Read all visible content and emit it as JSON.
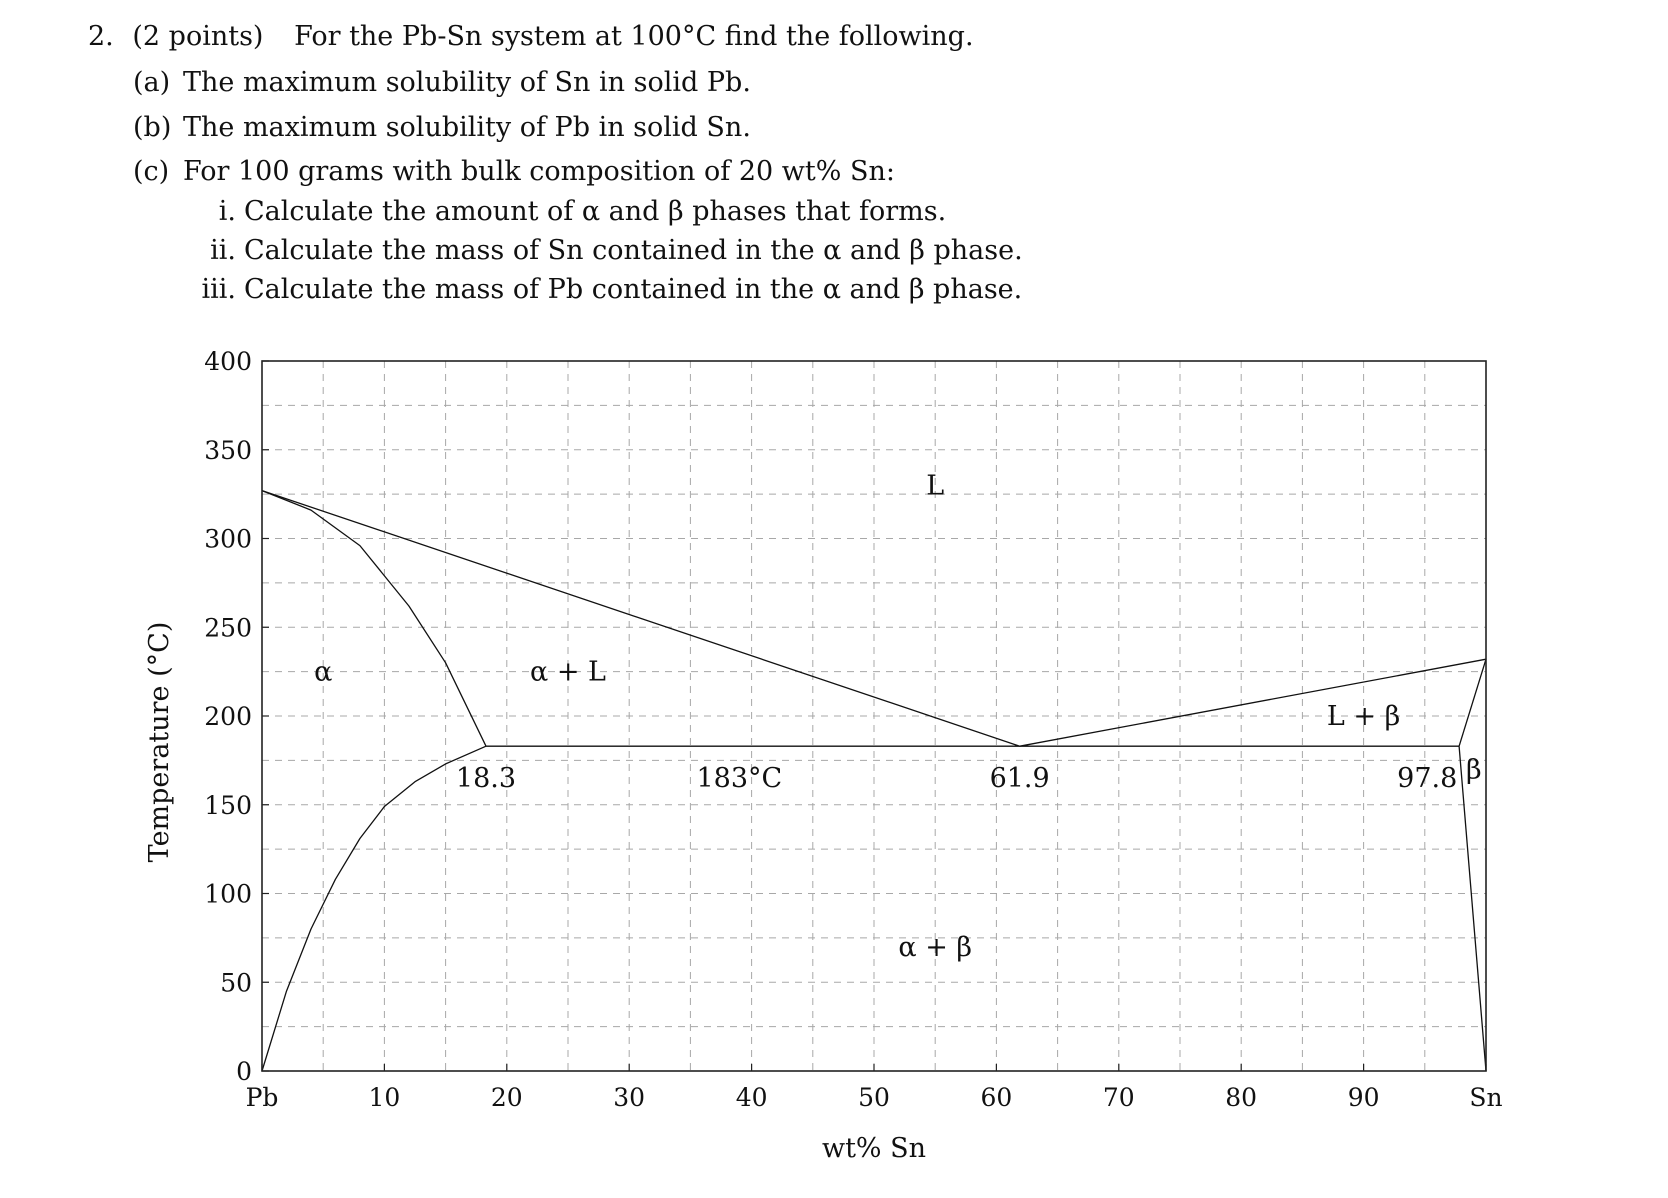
{
  "problem": {
    "number": "2.",
    "points": "(2 points)",
    "intro": "For the Pb-Sn system at 100°C find the following.",
    "parts": [
      {
        "label": "(a)",
        "text": "The maximum solubility of Sn in solid Pb."
      },
      {
        "label": "(b)",
        "text": "The maximum solubility of Pb in solid Sn."
      },
      {
        "label": "(c)",
        "text": "For 100 grams with bulk composition of 20 wt% Sn:"
      }
    ],
    "subparts": [
      {
        "label": "i.",
        "text": "Calculate the amount of α and β phases that forms."
      },
      {
        "label": "ii.",
        "text": "Calculate the mass of Sn contained in the α and β phase."
      },
      {
        "label": "iii.",
        "text": "Calculate the mass of Pb contained in the α and β phase."
      }
    ]
  },
  "chart_data": {
    "type": "line",
    "title": "",
    "xlabel": "wt% Sn",
    "ylabel": "Temperature (°C)",
    "xlim": [
      0,
      100
    ],
    "ylim": [
      0,
      400
    ],
    "grid": true,
    "x_ticks": [
      {
        "value": 0,
        "label": "Pb"
      },
      {
        "value": 10,
        "label": "10"
      },
      {
        "value": 20,
        "label": "20"
      },
      {
        "value": 30,
        "label": "30"
      },
      {
        "value": 40,
        "label": "40"
      },
      {
        "value": 50,
        "label": "50"
      },
      {
        "value": 60,
        "label": "60"
      },
      {
        "value": 70,
        "label": "70"
      },
      {
        "value": 80,
        "label": "80"
      },
      {
        "value": 90,
        "label": "90"
      },
      {
        "value": 100,
        "label": "Sn"
      }
    ],
    "y_ticks": [
      {
        "value": 0,
        "label": "0"
      },
      {
        "value": 50,
        "label": "50"
      },
      {
        "value": 100,
        "label": "100"
      },
      {
        "value": 150,
        "label": "150"
      },
      {
        "value": 200,
        "label": "200"
      },
      {
        "value": 250,
        "label": "250"
      },
      {
        "value": 300,
        "label": "300"
      },
      {
        "value": 350,
        "label": "350"
      },
      {
        "value": 400,
        "label": "400"
      }
    ],
    "series": [
      {
        "id": "liquidus-left",
        "points": [
          [
            0,
            327
          ],
          [
            61.9,
            183
          ]
        ]
      },
      {
        "id": "liquidus-right",
        "points": [
          [
            61.9,
            183
          ],
          [
            100,
            232
          ]
        ]
      },
      {
        "id": "solidus-left",
        "points": [
          [
            0,
            327
          ],
          [
            4,
            316
          ],
          [
            8,
            296
          ],
          [
            12,
            262
          ],
          [
            15,
            230
          ],
          [
            18.3,
            183
          ]
        ]
      },
      {
        "id": "solvus-left",
        "points": [
          [
            0,
            0
          ],
          [
            2,
            45
          ],
          [
            4,
            80
          ],
          [
            6,
            108
          ],
          [
            8,
            131
          ],
          [
            10,
            149
          ],
          [
            12.5,
            163
          ],
          [
            15,
            173
          ],
          [
            18.3,
            183
          ]
        ]
      },
      {
        "id": "eutectic-isotherm",
        "points": [
          [
            18.3,
            183
          ],
          [
            97.8,
            183
          ]
        ]
      },
      {
        "id": "solidus-right",
        "points": [
          [
            97.8,
            183
          ],
          [
            100,
            232
          ]
        ]
      },
      {
        "id": "solvus-right",
        "points": [
          [
            97.8,
            183
          ],
          [
            100,
            0
          ]
        ]
      }
    ],
    "annotations": [
      {
        "text": "L",
        "x": 55,
        "y": 330
      },
      {
        "text": "α",
        "x": 5,
        "y": 225
      },
      {
        "text": "α + L",
        "x": 25,
        "y": 225
      },
      {
        "text": "L + β",
        "x": 90,
        "y": 200
      },
      {
        "text": "α + β",
        "x": 55,
        "y": 70
      },
      {
        "text": "18.3",
        "x": 18.3,
        "y": 165
      },
      {
        "text": "183°C",
        "x": 39,
        "y": 165
      },
      {
        "text": "61.9",
        "x": 61.9,
        "y": 165
      },
      {
        "text": "97.8",
        "x": 95.2,
        "y": 165
      },
      {
        "text": "β",
        "x": 99,
        "y": 170
      }
    ]
  }
}
